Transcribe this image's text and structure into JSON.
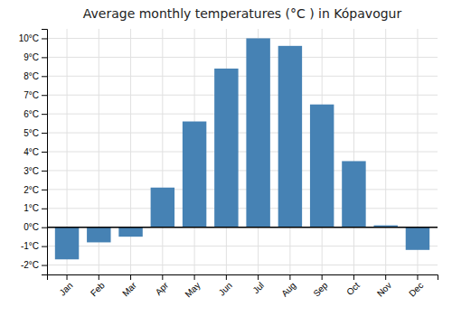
{
  "chart_data": {
    "type": "bar",
    "title": "Average monthly temperatures (°C ) in Kópavogur",
    "categories": [
      "Jan",
      "Feb",
      "Mar",
      "Apr",
      "May",
      "Jun",
      "Jul",
      "Aug",
      "Sep",
      "Oct",
      "Nov",
      "Dec"
    ],
    "values": [
      -1.7,
      -0.8,
      -0.5,
      2.1,
      5.6,
      8.4,
      10.0,
      9.6,
      6.5,
      3.5,
      0.1,
      -1.2
    ],
    "ylim": [
      -2.5,
      10.5
    ],
    "yticks": [
      {
        "value": -2,
        "label": "-2°C"
      },
      {
        "value": -1,
        "label": "-1°C"
      },
      {
        "value": 0,
        "label": "0°C"
      },
      {
        "value": 1,
        "label": "1°C"
      },
      {
        "value": 2,
        "label": "2°C"
      },
      {
        "value": 3,
        "label": "3°C"
      },
      {
        "value": 4,
        "label": "4°C"
      },
      {
        "value": 5,
        "label": "5°C"
      },
      {
        "value": 6,
        "label": "6°C"
      },
      {
        "value": 7,
        "label": "7°C"
      },
      {
        "value": 8,
        "label": "8°C"
      },
      {
        "value": 9,
        "label": "9°C"
      },
      {
        "value": 10,
        "label": "10°C"
      }
    ],
    "grid": true
  }
}
